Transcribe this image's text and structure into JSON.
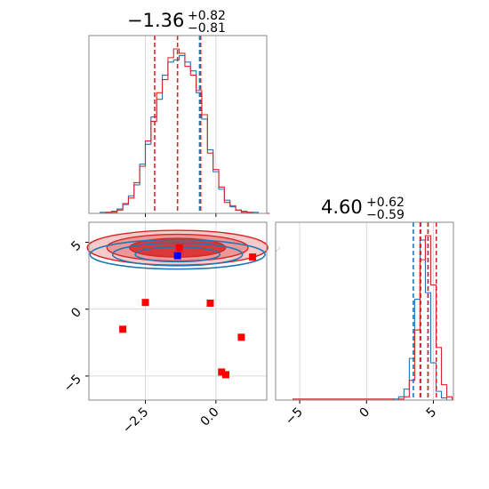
{
  "chart_data": [
    {
      "type": "histogram",
      "panel": "top-left marginal",
      "title": {
        "value": "−1.36",
        "plus": "+0.82",
        "minus": "−0.81"
      },
      "xlim": [
        -4.5,
        1.8
      ],
      "colors": {
        "blue": "#1f77b4",
        "red": "#d62728"
      },
      "red_quantiles": [
        -2.17,
        -1.36,
        -0.54
      ],
      "blue_quantiles": [
        -0.58
      ],
      "series": [
        {
          "name": "",
          "color": "#1f77b4",
          "x": [
            -4.5,
            -4.3,
            -4.1,
            -3.9,
            -3.7,
            -3.5,
            -3.3,
            -3.1,
            -2.9,
            -2.7,
            -2.5,
            -2.3,
            -2.1,
            -1.9,
            -1.7,
            -1.5,
            -1.3,
            -1.1,
            -0.9,
            -0.7,
            -0.5,
            -0.3,
            -0.1,
            0.1,
            0.3,
            0.5,
            0.7,
            0.9,
            1.1,
            1.3,
            1.5,
            1.7
          ],
          "counts": [
            0,
            0,
            1,
            1,
            2,
            4,
            8,
            16,
            26,
            45,
            63,
            88,
            104,
            126,
            138,
            140,
            144,
            138,
            130,
            110,
            86,
            58,
            38,
            22,
            12,
            6,
            3,
            2,
            1,
            1,
            0,
            0
          ]
        },
        {
          "name": "",
          "color": "#d62728",
          "x": [
            -4.5,
            -4.3,
            -4.1,
            -3.9,
            -3.7,
            -3.5,
            -3.3,
            -3.1,
            -2.9,
            -2.7,
            -2.5,
            -2.3,
            -2.1,
            -1.9,
            -1.7,
            -1.5,
            -1.3,
            -1.1,
            -0.9,
            -0.7,
            -0.5,
            -0.3,
            -0.1,
            0.1,
            0.3,
            0.5,
            0.7,
            0.9,
            1.1,
            1.3,
            1.5,
            1.7
          ],
          "counts": [
            0,
            0,
            0,
            1,
            1,
            3,
            9,
            14,
            28,
            43,
            66,
            84,
            110,
            122,
            142,
            150,
            146,
            134,
            126,
            112,
            90,
            55,
            40,
            24,
            10,
            7,
            3,
            1,
            1,
            0,
            0,
            0
          ]
        }
      ],
      "grid": true
    },
    {
      "type": "scatter",
      "panel": "bottom-left 2D",
      "xlim": [
        -4.5,
        1.8
      ],
      "ylim": [
        -6.8,
        6.5
      ],
      "xticks": [
        "−2.5",
        "0.0"
      ],
      "xtick_values": [
        -2.5,
        0.0
      ],
      "yticks": [
        "5",
        "0",
        "−5"
      ],
      "ytick_values": [
        5,
        0,
        -5
      ],
      "red_points": [
        {
          "x": -1.3,
          "y": 4.6
        },
        {
          "x": 1.3,
          "y": 3.9
        },
        {
          "x": -2.5,
          "y": 0.5
        },
        {
          "x": -0.2,
          "y": 0.45
        },
        {
          "x": -3.3,
          "y": -1.5
        },
        {
          "x": 0.9,
          "y": -2.1
        },
        {
          "x": 0.2,
          "y": -4.7
        },
        {
          "x": 0.35,
          "y": -4.9
        }
      ],
      "blue_points": [
        {
          "x": -1.36,
          "y": 4.0
        }
      ],
      "contours": {
        "red": {
          "center": [
            -1.36,
            4.6
          ],
          "radii": [
            [
              3.2,
              1.3
            ],
            [
              2.5,
              1.0
            ],
            [
              1.7,
              0.7
            ]
          ]
        },
        "blue": {
          "center": [
            -1.36,
            4.1
          ],
          "radii": [
            [
              3.1,
              1.1
            ],
            [
              2.3,
              0.85
            ],
            [
              1.5,
              0.55
            ]
          ]
        }
      },
      "grid": true
    },
    {
      "type": "histogram",
      "panel": "bottom-right marginal",
      "title": {
        "value": "4.60",
        "plus": "+0.62",
        "minus": "−0.59"
      },
      "xlim": [
        -6.8,
        6.5
      ],
      "xticks": [
        "−5",
        "0",
        "5"
      ],
      "xtick_values": [
        -5,
        0,
        5
      ],
      "red_quantiles": [
        4.01,
        4.6,
        5.22
      ],
      "blue_quantiles": [
        3.5,
        4.05,
        4.6
      ],
      "series": [
        {
          "name": "",
          "color": "#1f77b4",
          "x": [
            -6.0,
            2.0,
            2.4,
            2.8,
            3.2,
            3.6,
            4.0,
            4.4,
            4.8,
            5.2,
            5.6,
            6.0
          ],
          "counts": [
            0,
            1,
            3,
            10,
            38,
            92,
            146,
            98,
            34,
            8,
            2,
            0
          ]
        },
        {
          "name": "",
          "color": "#d62728",
          "x": [
            -5.5,
            2.0,
            2.4,
            2.8,
            3.2,
            3.6,
            4.0,
            4.4,
            4.8,
            5.2,
            5.6,
            6.0
          ],
          "counts": [
            1,
            0,
            1,
            3,
            18,
            64,
            128,
            150,
            105,
            48,
            14,
            3
          ]
        }
      ],
      "grid": true
    }
  ]
}
